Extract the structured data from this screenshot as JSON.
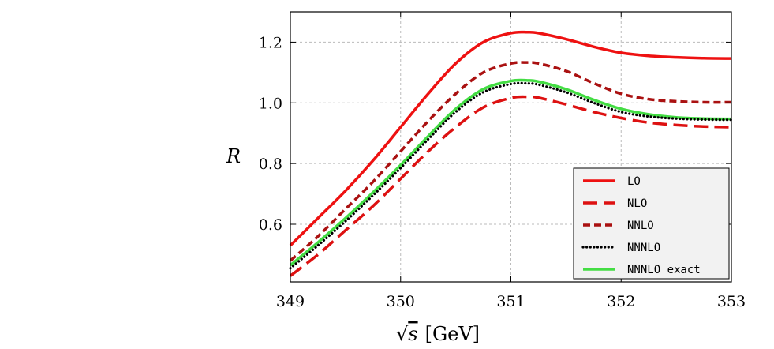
{
  "chart_data": {
    "type": "line",
    "xlabel": "√s [GeV]",
    "xlabel_parts": {
      "root": "√",
      "var": "s",
      "unit": "[GeV]"
    },
    "ylabel": "R",
    "xlim": [
      349,
      353
    ],
    "ylim": [
      0.41,
      1.3
    ],
    "x_ticks": [
      349,
      350,
      351,
      352,
      353
    ],
    "x_tick_labels": [
      "349",
      "350",
      "351",
      "352",
      "353"
    ],
    "y_ticks": [
      0.6,
      0.8,
      1.0,
      1.2
    ],
    "y_tick_labels": [
      "0.6",
      "0.8",
      "1.0",
      "1.2"
    ],
    "grid": true,
    "legend_position": "bottom-right",
    "x": [
      349.0,
      349.25,
      349.5,
      349.75,
      350.0,
      350.25,
      350.5,
      350.75,
      351.0,
      351.15,
      351.25,
      351.5,
      351.75,
      352.0,
      352.25,
      352.5,
      352.75,
      353.0
    ],
    "series": [
      {
        "name": "LO",
        "color": "#ee1111",
        "style": "solid",
        "values": [
          0.53,
          0.62,
          0.71,
          0.81,
          0.92,
          1.03,
          1.13,
          1.2,
          1.23,
          1.233,
          1.23,
          1.21,
          1.185,
          1.165,
          1.155,
          1.15,
          1.147,
          1.146
        ]
      },
      {
        "name": "NLO",
        "color": "#dd1111",
        "style": "long-dash",
        "values": [
          0.43,
          0.5,
          0.58,
          0.66,
          0.75,
          0.84,
          0.92,
          0.985,
          1.016,
          1.02,
          1.017,
          0.995,
          0.97,
          0.95,
          0.935,
          0.927,
          0.922,
          0.92
        ]
      },
      {
        "name": "NNLO",
        "color": "#aa1111",
        "style": "dash",
        "values": [
          0.48,
          0.56,
          0.65,
          0.74,
          0.84,
          0.94,
          1.03,
          1.1,
          1.13,
          1.133,
          1.13,
          1.105,
          1.065,
          1.03,
          1.012,
          1.005,
          1.002,
          1.002
        ]
      },
      {
        "name": "NNNLO",
        "color": "#000000",
        "style": "dot",
        "values": [
          0.455,
          0.53,
          0.61,
          0.695,
          0.785,
          0.88,
          0.97,
          1.035,
          1.062,
          1.064,
          1.06,
          1.035,
          1.0,
          0.97,
          0.955,
          0.948,
          0.945,
          0.944
        ]
      },
      {
        "name": "NNNLO exact",
        "color": "#44dd44",
        "style": "solid",
        "values": [
          0.465,
          0.54,
          0.62,
          0.705,
          0.795,
          0.89,
          0.98,
          1.045,
          1.072,
          1.074,
          1.07,
          1.045,
          1.01,
          0.98,
          0.962,
          0.952,
          0.948,
          0.947
        ]
      }
    ]
  }
}
